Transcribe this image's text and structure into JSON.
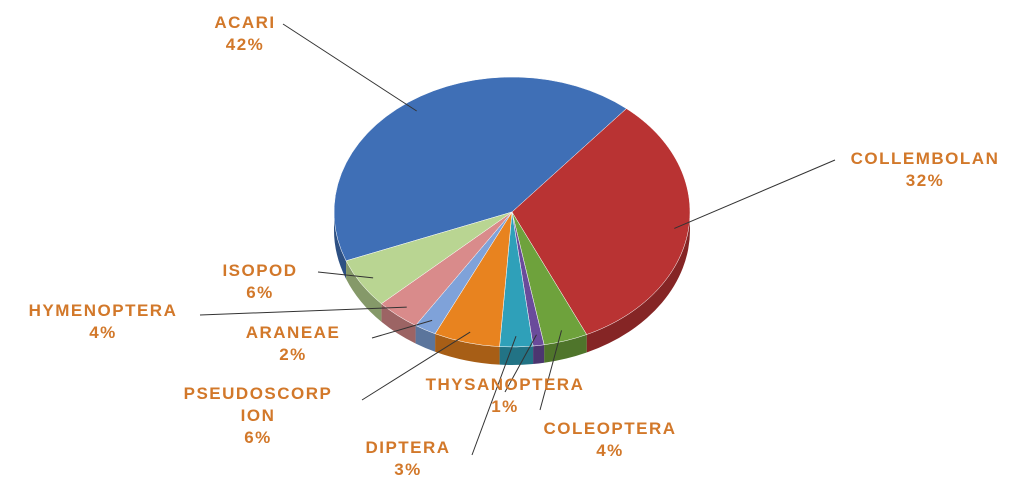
{
  "chart_data": {
    "type": "pie",
    "categories": [
      "ACARI",
      "COLLEMBOLAN",
      "COLEOPTERA",
      "THYSANOPTERA",
      "DIPTERA",
      "PSEUDOSCORPION",
      "ARANEAE",
      "HYMENOPTERA",
      "ISOPOD"
    ],
    "values": [
      42,
      32,
      4,
      1,
      3,
      6,
      2,
      4,
      6
    ],
    "value_labels": [
      "42%",
      "32%",
      "4%",
      "1%",
      "3%",
      "6%",
      "2%",
      "4%",
      "6%"
    ],
    "colors": [
      "#3f6fb6",
      "#b93333",
      "#6ea23c",
      "#6a4b9b",
      "#2fa0b9",
      "#e8831f",
      "#7fa2d9",
      "#d98b8b",
      "#b9d592"
    ]
  }
}
